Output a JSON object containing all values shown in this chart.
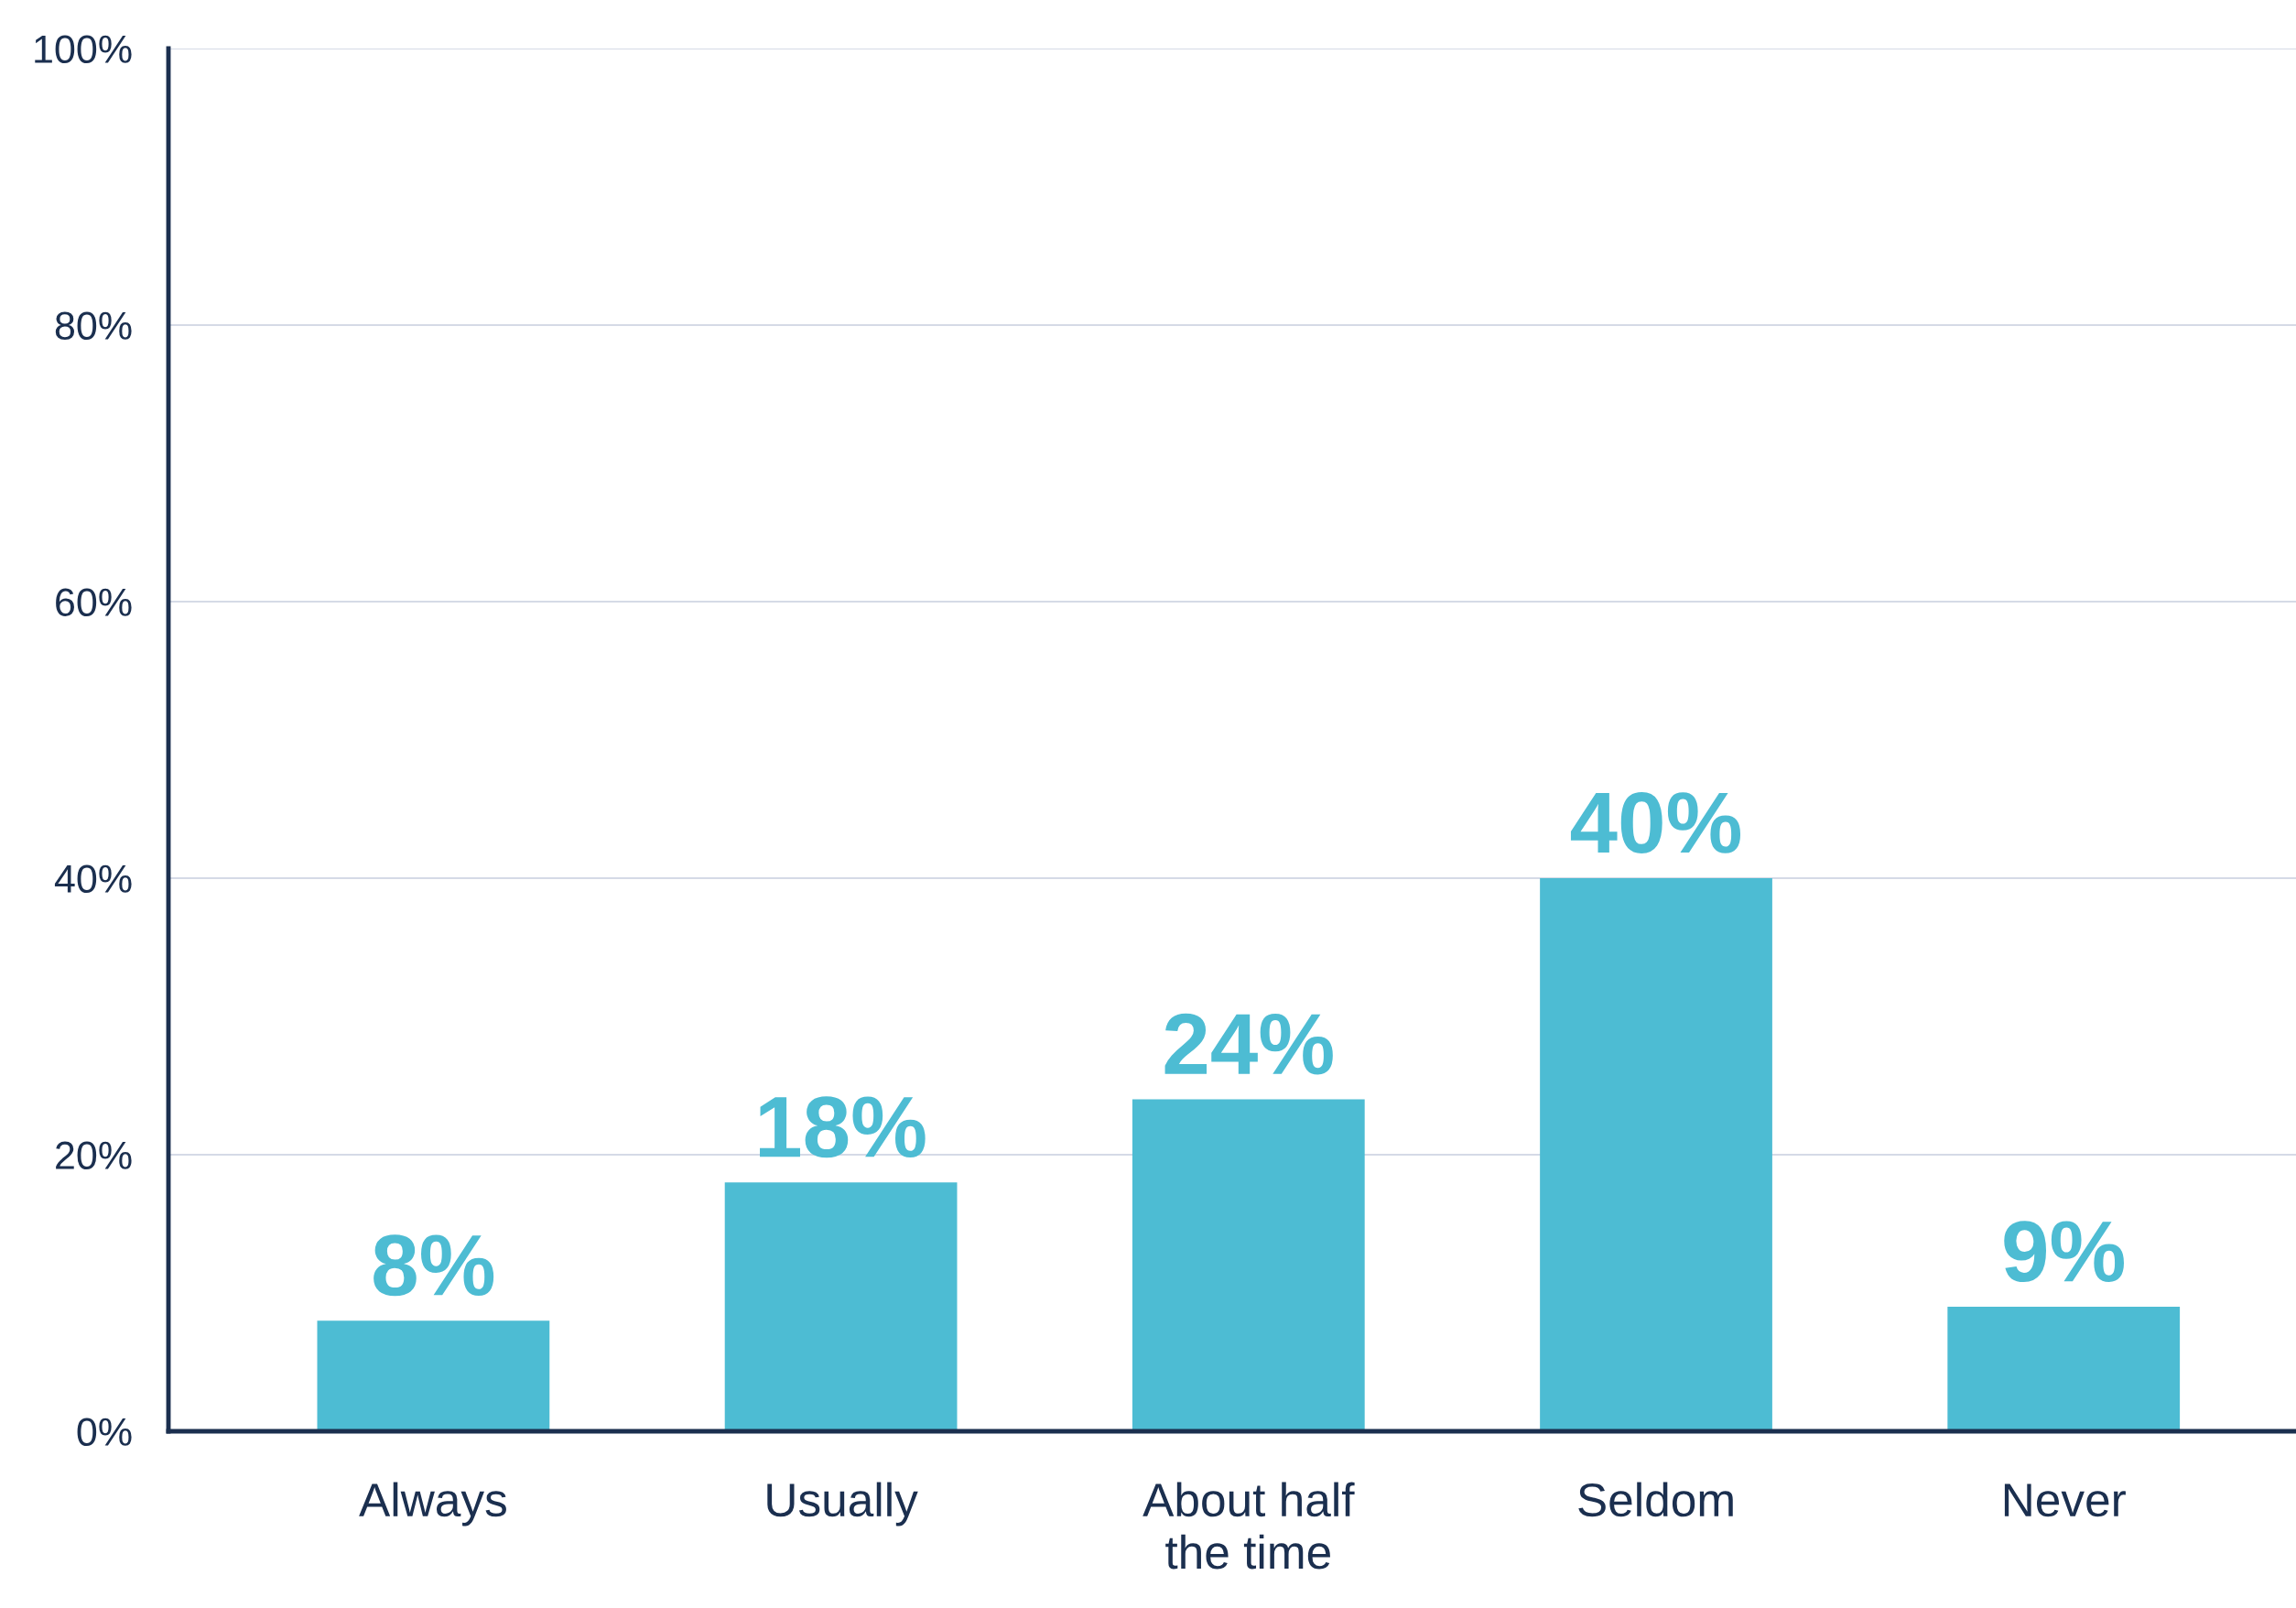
{
  "chart_data": {
    "type": "bar",
    "categories": [
      "Always",
      "Usually",
      "About half\nthe time",
      "Seldom",
      "Never"
    ],
    "values": [
      8,
      18,
      24,
      40,
      9
    ],
    "value_labels": [
      "8%",
      "18%",
      "24%",
      "40%",
      "9%"
    ],
    "color": "#4dbcd3",
    "ylim": [
      0,
      100
    ],
    "yticks": [
      {
        "value": 0,
        "label": "0%"
      },
      {
        "value": 20,
        "label": "20%"
      },
      {
        "value": 40,
        "label": "40%"
      },
      {
        "value": 60,
        "label": "60%"
      },
      {
        "value": 80,
        "label": "80%"
      },
      {
        "value": 100,
        "label": "100%"
      }
    ],
    "grid": "y",
    "legend": false
  }
}
